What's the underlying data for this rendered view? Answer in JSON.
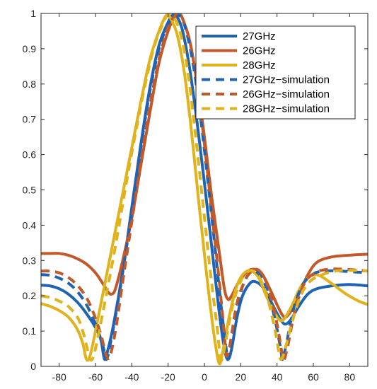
{
  "chart_data": {
    "type": "line",
    "title": "",
    "xlabel": "",
    "ylabel": "",
    "xlim": [
      -90,
      90
    ],
    "ylim": [
      0,
      1
    ],
    "xticks": [
      -80,
      -60,
      -40,
      -20,
      0,
      20,
      40,
      60,
      80
    ],
    "yticks": [
      0,
      0.1,
      0.2,
      0.3,
      0.4,
      0.5,
      0.6,
      0.7,
      0.8,
      0.9,
      1
    ],
    "xtick_labels": [
      "-80",
      "-60",
      "-40",
      "-20",
      "0",
      "20",
      "40",
      "60",
      "80"
    ],
    "ytick_labels": [
      "0",
      "0.1",
      "0.2",
      "0.3",
      "0.4",
      "0.5",
      "0.6",
      "0.7",
      "0.8",
      "0.9",
      "1"
    ],
    "grid": false,
    "legend": "top-right",
    "series": [
      {
        "name": "27GHz",
        "color": "#1f63b5",
        "style": "solid",
        "points": [
          [
            -90,
            0.23
          ],
          [
            -85,
            0.228
          ],
          [
            -80,
            0.22
          ],
          [
            -75,
            0.205
          ],
          [
            -70,
            0.182
          ],
          [
            -65,
            0.15
          ],
          [
            -60,
            0.11
          ],
          [
            -57,
            0.075
          ],
          [
            -55,
            0.02
          ],
          [
            -53,
            0.05
          ],
          [
            -50,
            0.12
          ],
          [
            -45,
            0.27
          ],
          [
            -40,
            0.45
          ],
          [
            -35,
            0.63
          ],
          [
            -30,
            0.79
          ],
          [
            -25,
            0.91
          ],
          [
            -20,
            0.975
          ],
          [
            -17,
            0.998
          ],
          [
            -15,
            0.99
          ],
          [
            -12,
            0.95
          ],
          [
            -8,
            0.84
          ],
          [
            -4,
            0.69
          ],
          [
            0,
            0.52
          ],
          [
            4,
            0.34
          ],
          [
            8,
            0.16
          ],
          [
            11,
            0.05
          ],
          [
            13,
            0.02
          ],
          [
            15,
            0.05
          ],
          [
            18,
            0.14
          ],
          [
            21,
            0.2
          ],
          [
            25,
            0.235
          ],
          [
            28,
            0.24
          ],
          [
            32,
            0.225
          ],
          [
            36,
            0.19
          ],
          [
            40,
            0.15
          ],
          [
            43,
            0.125
          ],
          [
            45,
            0.12
          ],
          [
            48,
            0.135
          ],
          [
            52,
            0.17
          ],
          [
            57,
            0.205
          ],
          [
            62,
            0.22
          ],
          [
            70,
            0.228
          ],
          [
            80,
            0.232
          ],
          [
            90,
            0.228
          ]
        ]
      },
      {
        "name": "26GHz",
        "color": "#c1592a",
        "style": "solid",
        "points": [
          [
            -90,
            0.32
          ],
          [
            -85,
            0.32
          ],
          [
            -80,
            0.32
          ],
          [
            -75,
            0.315
          ],
          [
            -70,
            0.305
          ],
          [
            -65,
            0.29
          ],
          [
            -60,
            0.265
          ],
          [
            -56,
            0.235
          ],
          [
            -53,
            0.21
          ],
          [
            -51,
            0.205
          ],
          [
            -49,
            0.22
          ],
          [
            -45,
            0.3
          ],
          [
            -40,
            0.42
          ],
          [
            -35,
            0.57
          ],
          [
            -30,
            0.72
          ],
          [
            -25,
            0.86
          ],
          [
            -20,
            0.95
          ],
          [
            -16,
            0.995
          ],
          [
            -14,
            1.0
          ],
          [
            -12,
            0.985
          ],
          [
            -8,
            0.92
          ],
          [
            -4,
            0.8
          ],
          [
            0,
            0.65
          ],
          [
            4,
            0.48
          ],
          [
            8,
            0.33
          ],
          [
            11,
            0.22
          ],
          [
            13,
            0.19
          ],
          [
            15,
            0.2
          ],
          [
            19,
            0.24
          ],
          [
            24,
            0.27
          ],
          [
            28,
            0.275
          ],
          [
            32,
            0.26
          ],
          [
            36,
            0.22
          ],
          [
            40,
            0.175
          ],
          [
            43,
            0.145
          ],
          [
            45,
            0.14
          ],
          [
            48,
            0.16
          ],
          [
            52,
            0.205
          ],
          [
            57,
            0.26
          ],
          [
            62,
            0.295
          ],
          [
            70,
            0.31
          ],
          [
            80,
            0.315
          ],
          [
            90,
            0.318
          ]
        ]
      },
      {
        "name": "28GHz",
        "color": "#e0b31c",
        "style": "solid",
        "points": [
          [
            -90,
            0.178
          ],
          [
            -85,
            0.17
          ],
          [
            -80,
            0.158
          ],
          [
            -75,
            0.14
          ],
          [
            -70,
            0.105
          ],
          [
            -67,
            0.065
          ],
          [
            -65,
            0.02
          ],
          [
            -63,
            0.03
          ],
          [
            -60,
            0.1
          ],
          [
            -55,
            0.23
          ],
          [
            -50,
            0.36
          ],
          [
            -45,
            0.49
          ],
          [
            -40,
            0.62
          ],
          [
            -35,
            0.75
          ],
          [
            -30,
            0.87
          ],
          [
            -25,
            0.95
          ],
          [
            -21,
            0.995
          ],
          [
            -19,
            0.99
          ],
          [
            -15,
            0.94
          ],
          [
            -11,
            0.83
          ],
          [
            -7,
            0.66
          ],
          [
            -3,
            0.46
          ],
          [
            1,
            0.27
          ],
          [
            5,
            0.1
          ],
          [
            8,
            0.01
          ],
          [
            10,
            0.04
          ],
          [
            14,
            0.15
          ],
          [
            18,
            0.23
          ],
          [
            22,
            0.265
          ],
          [
            26,
            0.27
          ],
          [
            30,
            0.25
          ],
          [
            34,
            0.2
          ],
          [
            37,
            0.17
          ],
          [
            40,
            0.14
          ],
          [
            42,
            0.13
          ],
          [
            44,
            0.135
          ],
          [
            48,
            0.17
          ],
          [
            53,
            0.225
          ],
          [
            58,
            0.255
          ],
          [
            63,
            0.258
          ],
          [
            70,
            0.235
          ],
          [
            78,
            0.205
          ],
          [
            85,
            0.185
          ],
          [
            90,
            0.175
          ]
        ]
      },
      {
        "name": "27GHz−simulation",
        "color": "#1f63b5",
        "style": "dashed",
        "points": [
          [
            -90,
            0.26
          ],
          [
            -85,
            0.258
          ],
          [
            -80,
            0.25
          ],
          [
            -75,
            0.236
          ],
          [
            -70,
            0.212
          ],
          [
            -65,
            0.175
          ],
          [
            -60,
            0.12
          ],
          [
            -56,
            0.06
          ],
          [
            -54,
            0.02
          ],
          [
            -52,
            0.06
          ],
          [
            -48,
            0.17
          ],
          [
            -44,
            0.3
          ],
          [
            -40,
            0.44
          ],
          [
            -35,
            0.62
          ],
          [
            -30,
            0.78
          ],
          [
            -25,
            0.9
          ],
          [
            -20,
            0.97
          ],
          [
            -16,
            0.995
          ],
          [
            -13,
            0.99
          ],
          [
            -10,
            0.95
          ],
          [
            -6,
            0.85
          ],
          [
            -2,
            0.7
          ],
          [
            2,
            0.52
          ],
          [
            6,
            0.33
          ],
          [
            9,
            0.18
          ],
          [
            12,
            0.05
          ],
          [
            13,
            0.02
          ],
          [
            15,
            0.07
          ],
          [
            19,
            0.19
          ],
          [
            23,
            0.25
          ],
          [
            27,
            0.27
          ],
          [
            31,
            0.255
          ],
          [
            35,
            0.21
          ],
          [
            39,
            0.13
          ],
          [
            42,
            0.05
          ],
          [
            43,
            0.02
          ],
          [
            45,
            0.06
          ],
          [
            49,
            0.16
          ],
          [
            54,
            0.23
          ],
          [
            60,
            0.262
          ],
          [
            66,
            0.27
          ],
          [
            75,
            0.27
          ],
          [
            90,
            0.265
          ]
        ]
      },
      {
        "name": "26GHz−simulation",
        "color": "#c1592a",
        "style": "dashed",
        "points": [
          [
            -90,
            0.27
          ],
          [
            -85,
            0.27
          ],
          [
            -80,
            0.265
          ],
          [
            -75,
            0.252
          ],
          [
            -70,
            0.23
          ],
          [
            -65,
            0.195
          ],
          [
            -61,
            0.15
          ],
          [
            -57,
            0.09
          ],
          [
            -54,
            0.03
          ],
          [
            -52,
            0.03
          ],
          [
            -49,
            0.1
          ],
          [
            -45,
            0.24
          ],
          [
            -40,
            0.41
          ],
          [
            -35,
            0.58
          ],
          [
            -30,
            0.74
          ],
          [
            -25,
            0.87
          ],
          [
            -20,
            0.96
          ],
          [
            -16,
            0.995
          ],
          [
            -14,
            1.0
          ],
          [
            -12,
            0.985
          ],
          [
            -8,
            0.92
          ],
          [
            -4,
            0.8
          ],
          [
            0,
            0.63
          ],
          [
            4,
            0.44
          ],
          [
            8,
            0.25
          ],
          [
            11,
            0.09
          ],
          [
            12,
            0.03
          ],
          [
            14,
            0.06
          ],
          [
            18,
            0.18
          ],
          [
            23,
            0.25
          ],
          [
            28,
            0.275
          ],
          [
            32,
            0.26
          ],
          [
            36,
            0.21
          ],
          [
            40,
            0.12
          ],
          [
            43,
            0.03
          ],
          [
            44,
            0.02
          ],
          [
            46,
            0.06
          ],
          [
            50,
            0.16
          ],
          [
            55,
            0.235
          ],
          [
            61,
            0.265
          ],
          [
            68,
            0.275
          ],
          [
            78,
            0.275
          ],
          [
            90,
            0.27
          ]
        ]
      },
      {
        "name": "28GHz−simulation",
        "color": "#e0b31c",
        "style": "dashed",
        "points": [
          [
            -90,
            0.2
          ],
          [
            -85,
            0.195
          ],
          [
            -80,
            0.185
          ],
          [
            -75,
            0.17
          ],
          [
            -70,
            0.14
          ],
          [
            -67,
            0.1
          ],
          [
            -65,
            0.06
          ],
          [
            -63,
            0.02
          ],
          [
            -61,
            0.03
          ],
          [
            -58,
            0.1
          ],
          [
            -53,
            0.23
          ],
          [
            -48,
            0.37
          ],
          [
            -43,
            0.52
          ],
          [
            -38,
            0.66
          ],
          [
            -33,
            0.79
          ],
          [
            -28,
            0.9
          ],
          [
            -23,
            0.97
          ],
          [
            -20,
            0.995
          ],
          [
            -17,
            0.99
          ],
          [
            -13,
            0.94
          ],
          [
            -9,
            0.83
          ],
          [
            -5,
            0.66
          ],
          [
            -1,
            0.47
          ],
          [
            3,
            0.28
          ],
          [
            7,
            0.11
          ],
          [
            9,
            0.02
          ],
          [
            11,
            0.05
          ],
          [
            15,
            0.16
          ],
          [
            19,
            0.23
          ],
          [
            23,
            0.265
          ],
          [
            27,
            0.27
          ],
          [
            31,
            0.245
          ],
          [
            35,
            0.19
          ],
          [
            39,
            0.1
          ],
          [
            41,
            0.04
          ],
          [
            42,
            0.02
          ],
          [
            44,
            0.04
          ],
          [
            48,
            0.12
          ],
          [
            53,
            0.2
          ],
          [
            58,
            0.24
          ],
          [
            64,
            0.258
          ],
          [
            72,
            0.27
          ],
          [
            82,
            0.272
          ],
          [
            90,
            0.27
          ]
        ]
      }
    ]
  }
}
